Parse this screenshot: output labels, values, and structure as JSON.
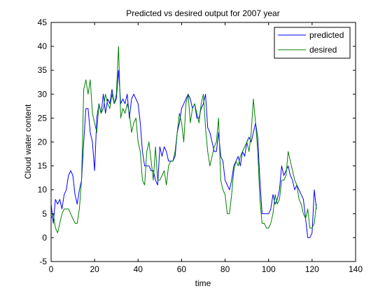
{
  "chart_data": {
    "type": "line",
    "title": "Predicted vs desired output for 2007 year",
    "xlabel": "time",
    "ylabel": "Cloud water content",
    "xlim": [
      0,
      140
    ],
    "ylim": [
      -5,
      45
    ],
    "xticks": [
      0,
      20,
      40,
      60,
      80,
      100,
      120,
      140
    ],
    "yticks": [
      -5,
      0,
      5,
      10,
      15,
      20,
      25,
      30,
      35,
      40,
      45
    ],
    "grid": false,
    "legend_position": "top-right",
    "series": [
      {
        "name": "predicted",
        "color": "#0000ff",
        "x": [
          0,
          1,
          2,
          3,
          4,
          5,
          6,
          7,
          8,
          9,
          10,
          11,
          12,
          13,
          14,
          15,
          16,
          17,
          18,
          19,
          20,
          21,
          22,
          23,
          24,
          25,
          26,
          27,
          28,
          29,
          30,
          31,
          32,
          33,
          34,
          35,
          36,
          37,
          38,
          39,
          40,
          41,
          42,
          43,
          44,
          45,
          46,
          47,
          48,
          49,
          50,
          51,
          52,
          53,
          54,
          55,
          56,
          57,
          58,
          59,
          60,
          61,
          62,
          63,
          64,
          65,
          66,
          67,
          68,
          69,
          70,
          71,
          72,
          73,
          74,
          75,
          76,
          77,
          78,
          79,
          80,
          81,
          82,
          83,
          84,
          85,
          86,
          87,
          88,
          89,
          90,
          91,
          92,
          93,
          94,
          95,
          96,
          97,
          98,
          99,
          100,
          101,
          102,
          103,
          104,
          105,
          106,
          107,
          108,
          109,
          110,
          111,
          112,
          113,
          114,
          115,
          116,
          117,
          118,
          119,
          120,
          121,
          122
        ],
        "y": [
          7,
          3,
          8,
          7,
          8,
          6,
          9,
          10,
          13,
          14,
          13,
          9,
          7,
          10,
          12,
          20,
          27,
          27,
          22,
          20,
          14,
          25,
          28,
          26,
          30,
          26,
          29,
          28,
          31,
          28,
          29,
          35,
          28,
          29,
          28,
          30,
          25,
          29,
          30,
          29,
          28,
          24,
          18,
          15,
          15,
          15,
          14,
          14,
          12,
          11,
          19,
          17,
          19,
          18,
          16,
          16,
          16,
          17,
          22,
          24,
          27,
          28,
          29,
          30,
          29,
          27,
          28,
          25,
          25,
          27,
          28,
          30,
          23,
          22,
          20,
          18,
          18,
          22,
          17,
          16,
          12,
          11,
          10,
          12,
          15,
          16,
          17,
          15,
          18,
          17,
          20,
          21,
          20,
          22,
          24,
          21,
          12,
          5,
          5,
          5,
          5,
          6,
          9,
          7,
          8,
          10,
          15,
          13,
          14,
          15,
          13,
          12,
          10,
          11,
          10,
          9,
          8,
          4,
          0,
          0,
          1,
          10,
          6
        ]
      },
      {
        "name": "desired",
        "color": "#008000",
        "x": [
          0,
          1,
          2,
          3,
          4,
          5,
          6,
          7,
          8,
          9,
          10,
          11,
          12,
          13,
          14,
          15,
          16,
          17,
          18,
          19,
          20,
          21,
          22,
          23,
          24,
          25,
          26,
          27,
          28,
          29,
          30,
          31,
          32,
          33,
          34,
          35,
          36,
          37,
          38,
          39,
          40,
          41,
          42,
          43,
          44,
          45,
          46,
          47,
          48,
          49,
          50,
          51,
          52,
          53,
          54,
          55,
          56,
          57,
          58,
          59,
          60,
          61,
          62,
          63,
          64,
          65,
          66,
          67,
          68,
          69,
          70,
          71,
          72,
          73,
          74,
          75,
          76,
          77,
          78,
          79,
          80,
          81,
          82,
          83,
          84,
          85,
          86,
          87,
          88,
          89,
          90,
          91,
          92,
          93,
          94,
          95,
          96,
          97,
          98,
          99,
          100,
          101,
          102,
          103,
          104,
          105,
          106,
          107,
          108,
          109,
          110,
          111,
          112,
          113,
          114,
          115,
          116,
          117,
          118,
          119,
          120,
          121,
          122
        ],
        "y": [
          4,
          5,
          2,
          1,
          3,
          5,
          6,
          6,
          6,
          5,
          4,
          3,
          3,
          6,
          12,
          31,
          33,
          30,
          33,
          26,
          24,
          22,
          28,
          26,
          27,
          30,
          28,
          27,
          30,
          28,
          30,
          40,
          25,
          27,
          26,
          28,
          26,
          22,
          24,
          25,
          20,
          18,
          12,
          11,
          18,
          20,
          16,
          12,
          19,
          12,
          12,
          13,
          14,
          11,
          15,
          16,
          16,
          18,
          22,
          26,
          24,
          20,
          28,
          30,
          24,
          27,
          28,
          26,
          24,
          28,
          30,
          23,
          18,
          15,
          17,
          19,
          20,
          25,
          12,
          10,
          9,
          5,
          5,
          9,
          14,
          16,
          15,
          17,
          18,
          19,
          20,
          18,
          22,
          29,
          24,
          18,
          8,
          3,
          3,
          2,
          2,
          3,
          5,
          9,
          7,
          8,
          12,
          12,
          13,
          18,
          16,
          14,
          12,
          11,
          8,
          7,
          5,
          4,
          6,
          2,
          2,
          3,
          7
        ]
      }
    ]
  }
}
